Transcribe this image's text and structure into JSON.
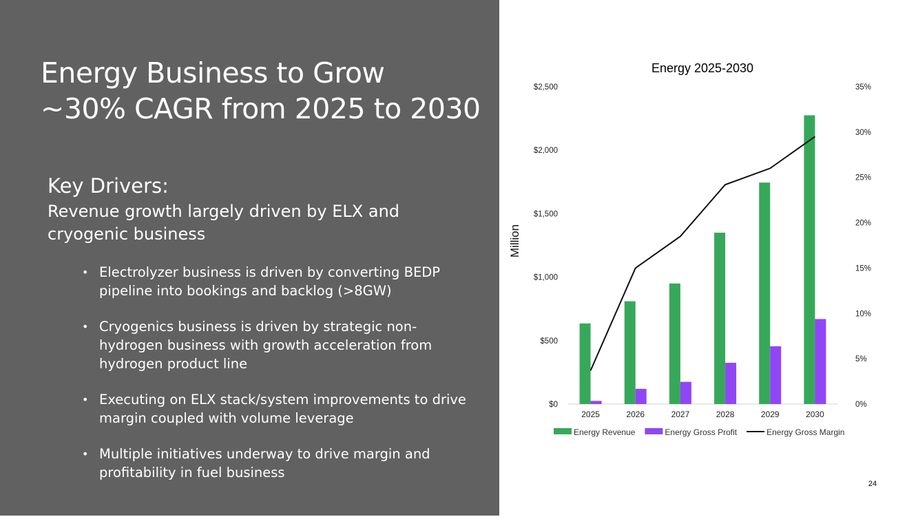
{
  "slide": {
    "title_line1": "Energy Business to Grow",
    "title_line2": "~30% CAGR from 2025 to 2030",
    "drivers_heading": "Key Drivers:",
    "drivers_subheading": "Revenue growth largely driven by ELX and cryogenic business",
    "bullets": [
      "Electrolyzer business is driven by converting BEDP pipeline into bookings and backlog (>8GW)",
      "Cryogenics business is driven by strategic non-hydrogen business with growth acceleration from hydrogen product line",
      "Executing on ELX stack/system improvements to drive margin coupled with volume leverage",
      "Multiple initiatives underway to drive margin and profitability in fuel business"
    ],
    "bullet_char": "•",
    "page_number": "24"
  },
  "colors": {
    "panel_bg": "#616161",
    "revenue": "#37a85a",
    "gross_profit": "#9146f5",
    "margin_line": "#111111"
  },
  "chart_data": {
    "type": "bar",
    "title": "Energy 2025-2030",
    "categories": [
      "2025",
      "2026",
      "2027",
      "2028",
      "2029",
      "2030"
    ],
    "series": [
      {
        "name": "Energy Revenue",
        "kind": "bar",
        "axis": "left",
        "color": "#37a85a",
        "values": [
          635,
          810,
          950,
          1350,
          1745,
          2275
        ]
      },
      {
        "name": "Energy Gross Profit",
        "kind": "bar",
        "axis": "left",
        "color": "#9146f5",
        "values": [
          25,
          120,
          175,
          325,
          455,
          670
        ]
      },
      {
        "name": "Energy Gross Margin",
        "kind": "line",
        "axis": "right",
        "color": "#111111",
        "values": [
          3.7,
          15.0,
          18.5,
          24.2,
          26.0,
          29.5
        ]
      }
    ],
    "ylabel": "Million",
    "ylim": [
      0,
      2500
    ],
    "yticks": [
      0,
      500,
      1000,
      1500,
      2000,
      2500
    ],
    "ytick_labels": [
      "$0",
      "$500",
      "$1,000",
      "$1,500",
      "$2,000",
      "$2,500"
    ],
    "y2lim": [
      0,
      35
    ],
    "y2ticks": [
      0,
      5,
      10,
      15,
      20,
      25,
      30,
      35
    ],
    "y2tick_labels": [
      "0%",
      "5%",
      "10%",
      "15%",
      "20%",
      "25%",
      "30%",
      "35%"
    ],
    "grid": false,
    "legend_position": "bottom"
  }
}
